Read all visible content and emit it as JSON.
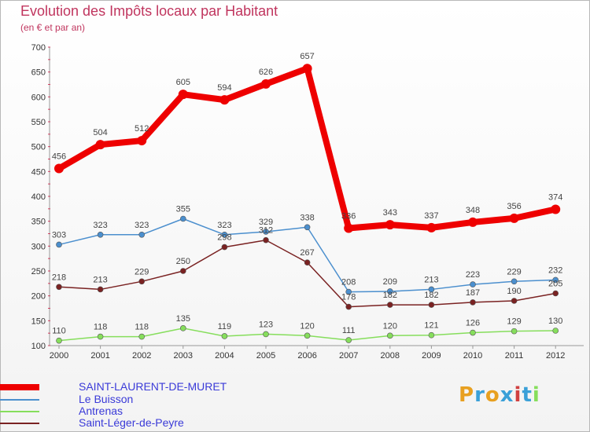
{
  "chart_data": {
    "type": "line",
    "title": "Evolution des Impôts locaux par Habitant",
    "subtitle": "(en € et par an)",
    "xlabel": "",
    "ylabel": "",
    "ylim": [
      100,
      700
    ],
    "yticks": [
      100,
      150,
      200,
      250,
      300,
      350,
      400,
      450,
      500,
      550,
      600,
      650,
      700
    ],
    "categories": [
      "2000",
      "2001",
      "2002",
      "2003",
      "2004",
      "2005",
      "2006",
      "2007",
      "2008",
      "2009",
      "2010",
      "2011",
      "2012"
    ],
    "series": [
      {
        "name": "SAINT-LAURENT-DE-MURET",
        "color": "#ee0000",
        "values": [
          456,
          504,
          512,
          605,
          594,
          626,
          657,
          336,
          343,
          337,
          348,
          356,
          374
        ]
      },
      {
        "name": "Le Buisson",
        "color": "#4b8fce",
        "values": [
          303,
          323,
          323,
          355,
          323,
          329,
          338,
          208,
          209,
          213,
          223,
          229,
          232
        ]
      },
      {
        "name": "Antrenas",
        "color": "#86de5c",
        "values": [
          110,
          118,
          118,
          135,
          119,
          123,
          120,
          111,
          120,
          121,
          126,
          129,
          130
        ]
      },
      {
        "name": "Saint-Léger-de-Peyre",
        "color": "#7a2222",
        "values": [
          218,
          213,
          229,
          250,
          298,
          312,
          267,
          178,
          182,
          182,
          187,
          190,
          205
        ]
      }
    ],
    "grid": false
  },
  "logo": {
    "text": "Proxiti",
    "letters": [
      {
        "char": "P",
        "color": "#e8a020"
      },
      {
        "char": "r",
        "color": "#3aa0d8"
      },
      {
        "char": "o",
        "color": "#e8a020"
      },
      {
        "char": "x",
        "color": "#3aa0d8"
      },
      {
        "char": "i",
        "color": "#d04040"
      },
      {
        "char": "t",
        "color": "#3aa0d8"
      },
      {
        "char": "i",
        "color": "#86de5c"
      }
    ]
  }
}
